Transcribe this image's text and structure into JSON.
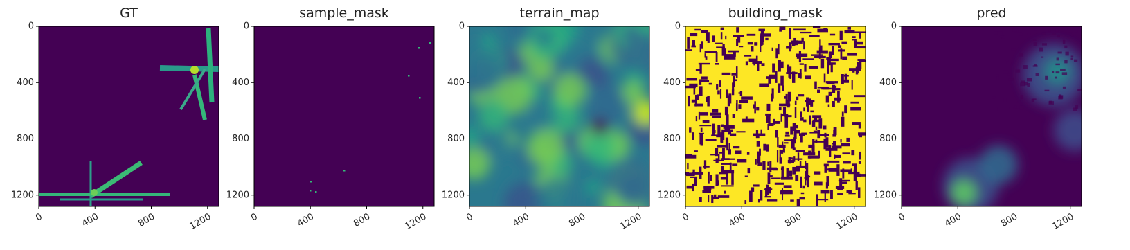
{
  "chart_data": [
    {
      "type": "image",
      "title": "GT",
      "xlim": [
        0,
        1280
      ],
      "ylim": [
        1280,
        0
      ],
      "xticks": [
        0,
        400,
        800,
        1200
      ],
      "yticks": [
        0,
        400,
        800,
        1200
      ]
    },
    {
      "type": "image",
      "title": "sample_mask",
      "xlim": [
        0,
        1280
      ],
      "ylim": [
        1280,
        0
      ],
      "xticks": [
        0,
        400,
        800,
        1200
      ],
      "yticks": [
        0,
        400,
        800,
        1200
      ]
    },
    {
      "type": "image",
      "title": "terrain_map",
      "xlim": [
        0,
        1280
      ],
      "ylim": [
        1280,
        0
      ],
      "xticks": [
        0,
        400,
        800,
        1200
      ],
      "yticks": [
        0,
        400,
        800,
        1200
      ]
    },
    {
      "type": "image",
      "title": "building_mask",
      "xlim": [
        0,
        1280
      ],
      "ylim": [
        1280,
        0
      ],
      "xticks": [
        0,
        400,
        800,
        1200
      ],
      "yticks": [
        0,
        400,
        800,
        1200
      ]
    },
    {
      "type": "image",
      "title": "pred",
      "xlim": [
        0,
        1280
      ],
      "ylim": [
        1280,
        0
      ],
      "xticks": [
        0,
        400,
        800,
        1200
      ],
      "yticks": [
        0,
        400,
        800,
        1200
      ]
    }
  ]
}
